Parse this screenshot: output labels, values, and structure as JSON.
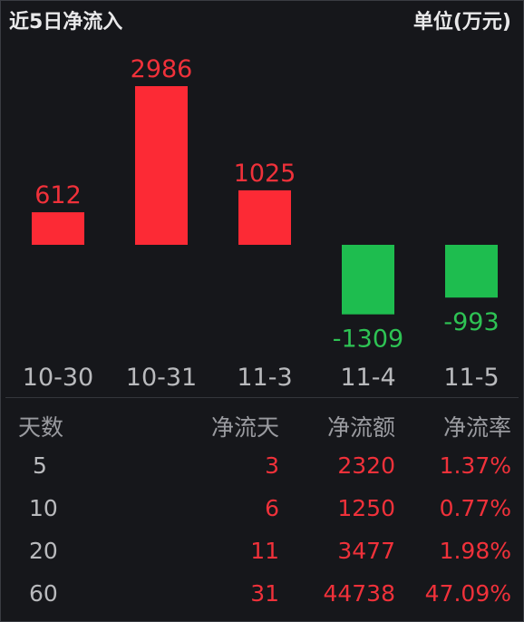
{
  "header": {
    "title": "近5日净流入",
    "unit": "单位(万元)"
  },
  "colors": {
    "positive": "#fc2a35",
    "negative": "#1ebd4f",
    "value_pos": "#f0313a",
    "value_neg": "#2ec354",
    "axis": "#b9babd"
  },
  "chart_data": {
    "type": "bar",
    "title": "近5日净流入",
    "unit": "单位(万元)",
    "categories": [
      "10-30",
      "10-31",
      "11-3",
      "11-4",
      "11-5"
    ],
    "values": [
      612,
      2986,
      1025,
      -1309,
      -993
    ],
    "grid": false,
    "legend": "none"
  },
  "table": {
    "headers": [
      "天数",
      "净流天",
      "净流额",
      "净流率"
    ],
    "rows": [
      {
        "days": "5",
        "flow_days": "3",
        "amount": "2320",
        "rate": "1.37%"
      },
      {
        "days": "10",
        "flow_days": "6",
        "amount": "1250",
        "rate": "0.77%"
      },
      {
        "days": "20",
        "flow_days": "11",
        "amount": "3477",
        "rate": "1.98%"
      },
      {
        "days": "60",
        "flow_days": "31",
        "amount": "44738",
        "rate": "47.09%"
      }
    ]
  }
}
